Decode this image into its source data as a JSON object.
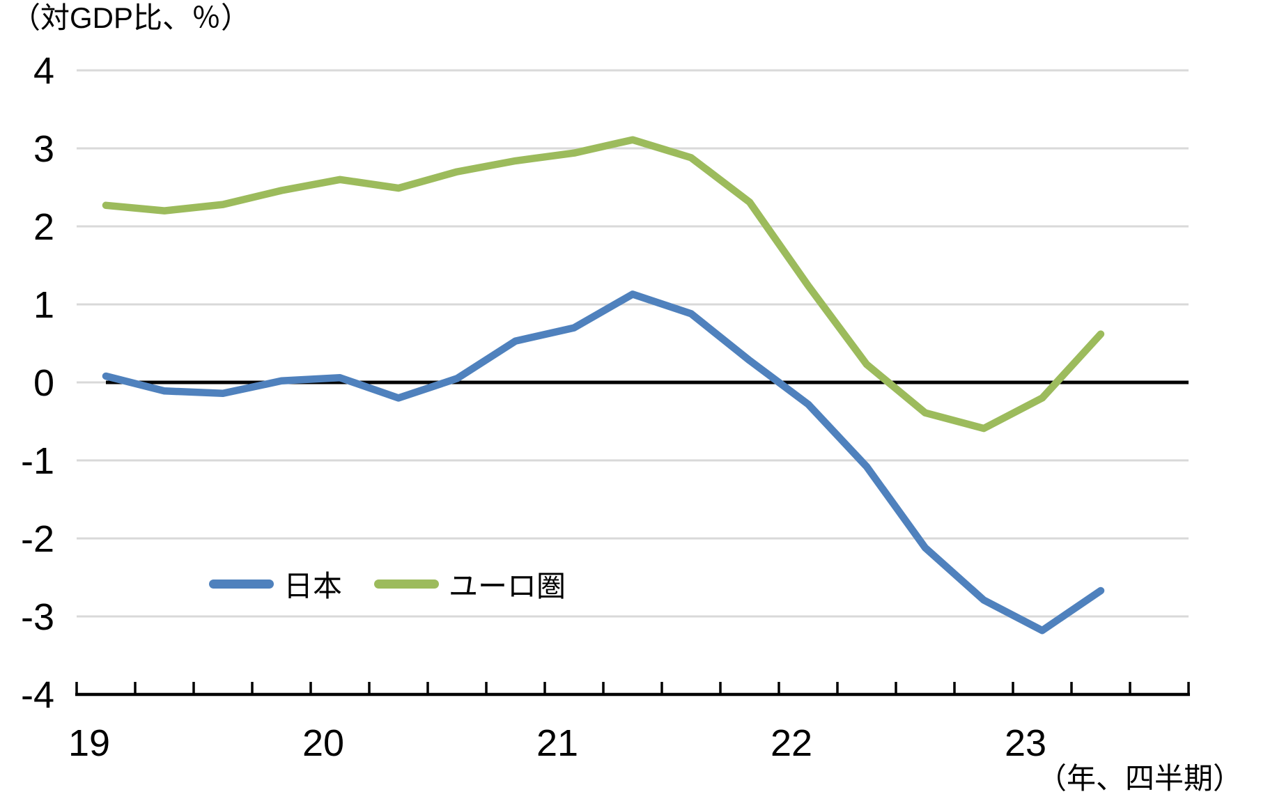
{
  "labels": {
    "y_axis_unit": "（対GDP比、％）",
    "x_axis_unit": "（年、四半期）"
  },
  "colors": {
    "grid": "#D9D9D9",
    "zero_line": "#000000",
    "axis": "#000000",
    "text": "#000000",
    "japan_line": "#4F81BD",
    "euro_line": "#9CBB5C"
  },
  "chart_data": {
    "type": "line",
    "title": "",
    "xlabel": "（年、四半期）",
    "ylabel": "（対GDP比、％）",
    "categories": [
      "2019Q1",
      "2019Q2",
      "2019Q3",
      "2019Q4",
      "2020Q1",
      "2020Q2",
      "2020Q3",
      "2020Q4",
      "2021Q1",
      "2021Q2",
      "2021Q3",
      "2021Q4",
      "2022Q1",
      "2022Q2",
      "2022Q3",
      "2022Q4",
      "2023Q1",
      "2023Q2"
    ],
    "series": [
      {
        "name": "日本",
        "color": "#4F81BD",
        "values": [
          0.08,
          -0.11,
          -0.14,
          0.02,
          0.06,
          -0.2,
          0.05,
          0.53,
          0.7,
          1.13,
          0.88,
          0.28,
          -0.28,
          -1.08,
          -2.12,
          -2.79,
          -3.18,
          -2.67
        ]
      },
      {
        "name": "ユーロ圏",
        "color": "#9CBB5C",
        "values": [
          2.27,
          2.2,
          2.28,
          2.46,
          2.6,
          2.49,
          2.7,
          2.84,
          2.94,
          3.11,
          2.88,
          2.31,
          1.24,
          0.23,
          -0.39,
          -0.59,
          -0.2,
          0.62
        ]
      }
    ],
    "ylim": [
      -4,
      4
    ],
    "y_ticks": [
      4,
      3,
      2,
      1,
      0,
      -1,
      -2,
      -3,
      -4
    ],
    "x_year_labels": [
      "19",
      "20",
      "21",
      "22",
      "23"
    ],
    "x_interval_count": 19,
    "quarters_per_year": 4,
    "grid": true,
    "zero_line": true,
    "legend_position": "inside-bottom-left"
  }
}
